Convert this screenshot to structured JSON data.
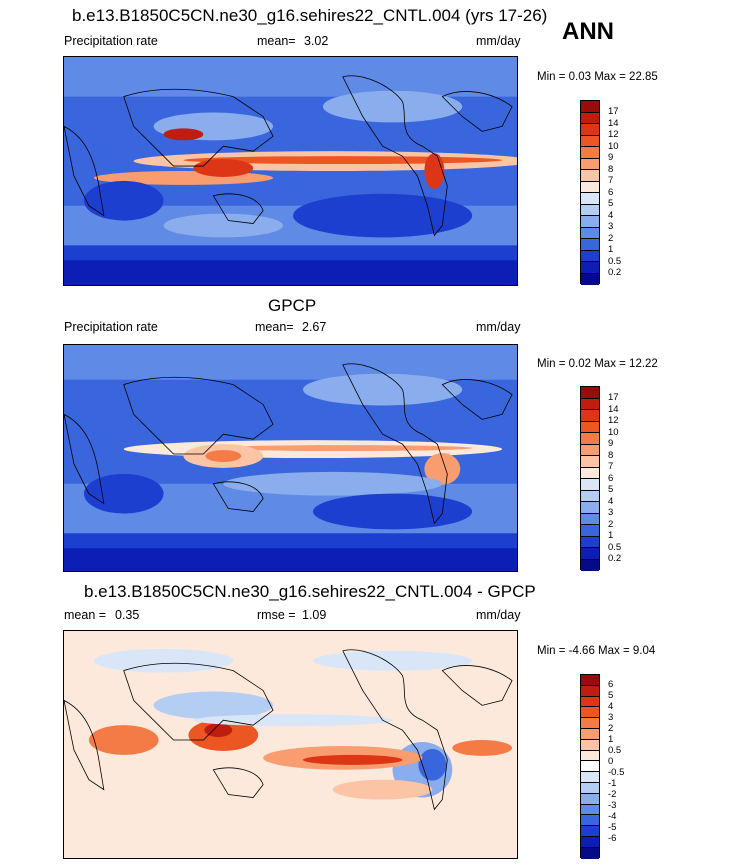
{
  "season": "ANN",
  "panels": [
    {
      "title": "b.e13.B1850C5CN.ne30_g16.sehires22_CNTL.004 (yrs 17-26)",
      "left_label": "Precipitation rate",
      "mean_label": "mean=",
      "mean_value": "3.02",
      "units": "mm/day",
      "minmax": "Min =   0.03 Max =  22.85",
      "colorbar": {
        "labels": [
          "17",
          "14",
          "12",
          "10",
          "9",
          "8",
          "7",
          "6",
          "5",
          "4",
          "3",
          "2",
          "1",
          "0.5",
          "0.2"
        ],
        "colors": [
          "#9b0b0b",
          "#bf1d10",
          "#dc3616",
          "#ec5622",
          "#f47b45",
          "#f89d70",
          "#fbc4a4",
          "#fde9db",
          "#d9e6f8",
          "#b4cdf3",
          "#8aaded",
          "#5f8ae6",
          "#3a66dd",
          "#1d3fd0",
          "#0c1eb5",
          "#050b86"
        ]
      }
    },
    {
      "title": "GPCP",
      "left_label": "Precipitation rate",
      "mean_label": "mean=",
      "mean_value": "2.67",
      "units": "mm/day",
      "minmax": "Min =   0.02 Max =  12.22",
      "colorbar": {
        "labels": [
          "17",
          "14",
          "12",
          "10",
          "9",
          "8",
          "7",
          "6",
          "5",
          "4",
          "3",
          "2",
          "1",
          "0.5",
          "0.2"
        ],
        "colors": [
          "#9b0b0b",
          "#bf1d10",
          "#dc3616",
          "#ec5622",
          "#f47b45",
          "#f89d70",
          "#fbc4a4",
          "#fde9db",
          "#d9e6f8",
          "#b4cdf3",
          "#8aaded",
          "#5f8ae6",
          "#3a66dd",
          "#1d3fd0",
          "#0c1eb5",
          "#050b86"
        ]
      }
    },
    {
      "title": "b.e13.B1850C5CN.ne30_g16.sehires22_CNTL.004 - GPCP",
      "left_label": "mean =",
      "mean_value": "0.35",
      "rmse_label": "rmse =",
      "rmse_value": "1.09",
      "units": "mm/day",
      "minmax": "Min =  -4.66 Max =   9.04",
      "colorbar": {
        "labels": [
          "6",
          "5",
          "4",
          "3",
          "2",
          "1",
          "0.5",
          "0",
          "-0.5",
          "-1",
          "-2",
          "-3",
          "-4",
          "-5",
          "-6"
        ],
        "colors": [
          "#9b0b0b",
          "#bf1d10",
          "#dc3616",
          "#ec5622",
          "#f47b45",
          "#f89d70",
          "#fbc4a4",
          "#fde9db",
          "#ffffff",
          "#d9e6f8",
          "#b4cdf3",
          "#8aaded",
          "#5f8ae6",
          "#3a66dd",
          "#1d3fd0",
          "#0c1eb5",
          "#050b86"
        ]
      }
    }
  ]
}
